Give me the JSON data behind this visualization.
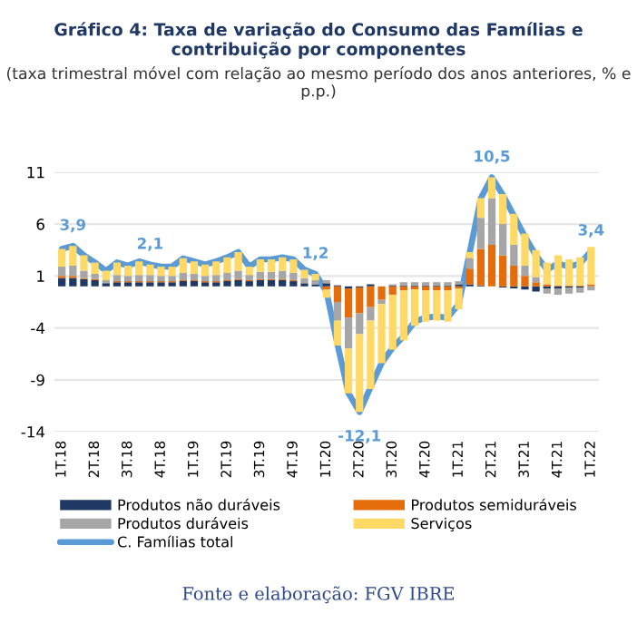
{
  "chart_data": {
    "type": "bar",
    "stacked": true,
    "title": "Gráfico 4: Taxa de variação do Consumo das Famílias e contribuição por componentes",
    "subtitle": "(taxa trimestral móvel com relação ao mesmo período dos anos anteriores, % e p.p.)",
    "annotations": [
      "Fonte e elaboração: FGV IBRE"
    ],
    "categories": [
      "1T.18",
      null,
      null,
      "2T.18",
      null,
      null,
      "3T.18",
      null,
      null,
      "4T.18",
      null,
      null,
      "1T.19",
      null,
      null,
      "2T.19",
      null,
      null,
      "3T.19",
      null,
      null,
      "4T.19",
      null,
      null,
      "1T.20",
      null,
      null,
      "2T.20",
      null,
      null,
      "3T.20",
      null,
      null,
      "4T.20",
      null,
      null,
      "1T.21",
      null,
      null,
      "2T.21",
      null,
      null,
      "3T.21",
      null,
      null,
      "4T.21",
      null,
      null,
      "1T.22"
    ],
    "series": [
      {
        "name": "Produtos não duráveis",
        "color": "#1f3864",
        "values": [
          0.8,
          0.8,
          0.7,
          0.6,
          0.3,
          0.4,
          0.4,
          0.4,
          0.4,
          0.4,
          0.4,
          0.5,
          0.5,
          0.4,
          0.4,
          0.5,
          0.6,
          0.5,
          0.6,
          0.6,
          0.6,
          0.5,
          0.3,
          0.2,
          0.3,
          0.1,
          -0.2,
          -0.1,
          0.2,
          0.0,
          0.1,
          0.1,
          0.1,
          0.1,
          0.1,
          0.1,
          0.2,
          0.2,
          0.1,
          0.0,
          -0.1,
          -0.2,
          -0.3,
          -0.5,
          -0.2,
          -0.2,
          -0.1,
          -0.1,
          0.0
        ]
      },
      {
        "name": "Produtos semiduráveis",
        "color": "#e46c0a",
        "values": [
          0.2,
          0.2,
          0.1,
          0.1,
          0.0,
          0.1,
          0.1,
          0.1,
          0.1,
          0.1,
          0.1,
          0.1,
          0.1,
          0.1,
          0.1,
          0.1,
          0.1,
          0.1,
          0.1,
          0.1,
          0.1,
          0.1,
          0.0,
          0.0,
          -0.3,
          -1.5,
          -2.8,
          -2.5,
          -2.0,
          -1.3,
          -0.8,
          -0.4,
          -0.3,
          -0.4,
          -0.4,
          -0.4,
          -0.2,
          1.5,
          3.5,
          4.0,
          3.0,
          2.0,
          1.0,
          0.4,
          0.2,
          0.1,
          0.1,
          0.1,
          0.2
        ]
      },
      {
        "name": "Produtos duráveis",
        "color": "#a6a6a6",
        "values": [
          0.9,
          1.0,
          0.7,
          0.5,
          0.3,
          0.6,
          0.5,
          0.6,
          0.6,
          0.5,
          0.5,
          0.7,
          0.6,
          0.5,
          0.6,
          0.7,
          0.8,
          0.5,
          0.7,
          0.7,
          0.8,
          0.7,
          0.5,
          0.4,
          0.3,
          -1.8,
          -3.0,
          -2.0,
          -1.3,
          -0.4,
          0.1,
          0.3,
          0.3,
          0.3,
          0.3,
          0.3,
          0.3,
          1.0,
          3.0,
          4.5,
          3.0,
          2.0,
          1.0,
          0.5,
          -0.5,
          -0.6,
          -0.6,
          -0.5,
          -0.4
        ]
      },
      {
        "name": "Serviços",
        "color": "#ffd966",
        "values": [
          1.7,
          1.9,
          1.5,
          1.1,
          0.9,
          1.2,
          1.0,
          1.3,
          1.0,
          0.9,
          0.9,
          1.4,
          1.2,
          1.1,
          1.3,
          1.5,
          1.8,
          0.8,
          1.2,
          1.2,
          1.3,
          1.3,
          0.8,
          0.6,
          -0.8,
          -2.4,
          -4.3,
          -7.5,
          -6.6,
          -5.7,
          -5.3,
          -4.8,
          -3.5,
          -3.0,
          -2.9,
          -3.0,
          -2.0,
          0.6,
          1.9,
          2.0,
          2.9,
          3.0,
          3.1,
          2.6,
          2.1,
          2.9,
          2.5,
          2.7,
          3.6
        ]
      },
      {
        "name": "C. Famílias total",
        "type": "line",
        "color": "#5b9bd5",
        "values": [
          3.6,
          3.9,
          3.0,
          2.3,
          1.5,
          2.3,
          2.0,
          2.4,
          2.1,
          1.9,
          1.9,
          2.7,
          2.4,
          2.1,
          2.4,
          2.8,
          3.3,
          1.9,
          2.6,
          2.6,
          2.8,
          2.6,
          1.6,
          1.2,
          -0.5,
          -5.6,
          -10.3,
          -12.1,
          -9.7,
          -7.4,
          -5.9,
          -4.8,
          -3.4,
          -3.0,
          -2.9,
          -3.0,
          -1.7,
          3.3,
          8.5,
          10.5,
          8.8,
          6.8,
          4.8,
          3.0,
          1.6,
          2.2,
          1.9,
          2.2,
          3.4
        ],
        "value_labels": [
          null,
          "3,9",
          null,
          null,
          null,
          null,
          null,
          null,
          "2,1",
          null,
          null,
          null,
          null,
          null,
          null,
          null,
          null,
          null,
          null,
          null,
          null,
          null,
          null,
          "1,2",
          null,
          null,
          null,
          "-12,1",
          null,
          null,
          null,
          null,
          null,
          null,
          null,
          null,
          null,
          null,
          null,
          "10,5",
          null,
          null,
          null,
          null,
          null,
          null,
          null,
          null,
          "3,4"
        ]
      }
    ],
    "ylim": [
      -14,
      11
    ],
    "yticks": [
      11,
      6,
      1,
      -4,
      -9,
      -14
    ],
    "grid": "y",
    "legend": "bottom"
  }
}
